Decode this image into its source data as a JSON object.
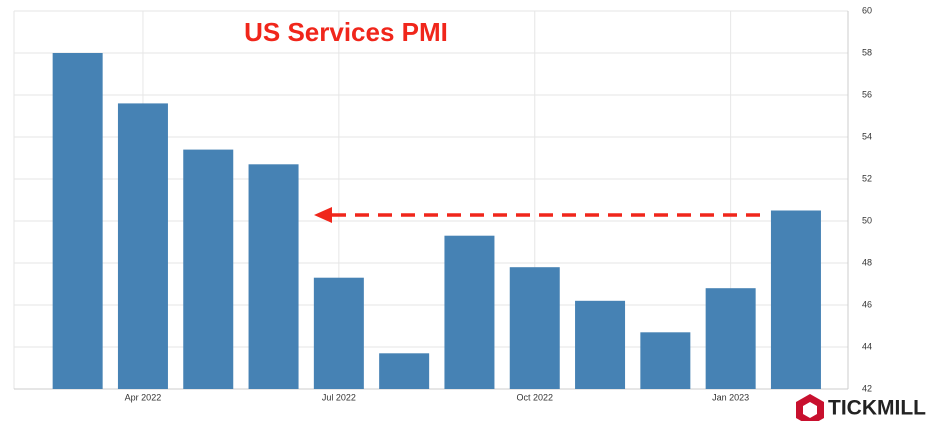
{
  "chart_data": {
    "type": "bar",
    "title": "US Services PMI",
    "categories": [
      null,
      "Apr 2022",
      null,
      null,
      "Jul 2022",
      null,
      null,
      "Oct 2022",
      null,
      null,
      "Jan 2023",
      null
    ],
    "values": [
      58,
      55.6,
      53.4,
      52.7,
      47.3,
      43.7,
      49.3,
      47.8,
      46.2,
      44.7,
      46.8,
      50.5
    ],
    "color": "#4682b4",
    "ylim": [
      42,
      60
    ],
    "yticks": [
      42,
      44,
      46,
      48,
      50,
      52,
      54,
      56,
      58,
      60
    ],
    "grid": true,
    "logo": "TICKMILL"
  }
}
